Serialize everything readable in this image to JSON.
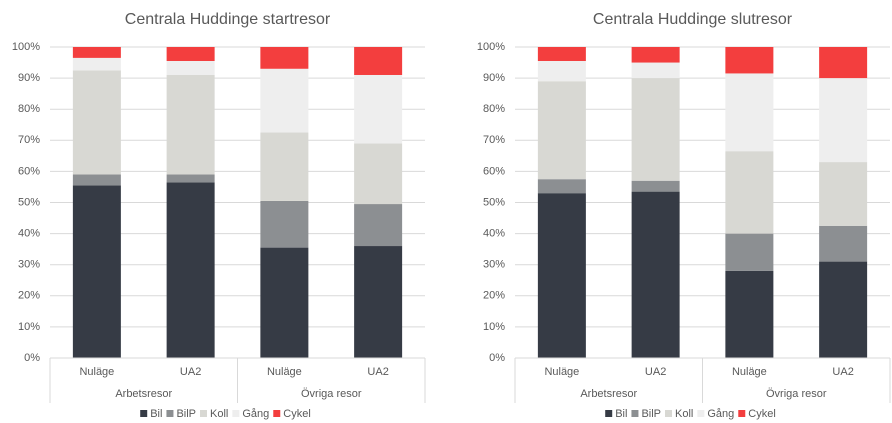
{
  "chart_data": [
    {
      "type": "stacked_bar",
      "title": "Centrala Huddinge startresor",
      "groups": [
        {
          "name": "Arbetsresor",
          "categories": [
            "Nuläge",
            "UA2"
          ]
        },
        {
          "name": "Övriga resor",
          "categories": [
            "Nuläge",
            "UA2"
          ]
        }
      ],
      "series": [
        {
          "name": "Bil",
          "color": "#363b45",
          "values": [
            55.5,
            56.5,
            35.5,
            36
          ]
        },
        {
          "name": "BilP",
          "color": "#8c8f92",
          "values": [
            3.5,
            2.5,
            15,
            13.5
          ]
        },
        {
          "name": "Koll",
          "color": "#d8d8d3",
          "values": [
            33.5,
            32,
            22,
            19.5
          ]
        },
        {
          "name": "Gång",
          "color": "#eeeeee",
          "values": [
            4,
            4.5,
            20.5,
            22
          ]
        },
        {
          "name": "Cykel",
          "color": "#f33e3e",
          "values": [
            3.5,
            4.5,
            7,
            9
          ]
        }
      ],
      "ylim": [
        0,
        100
      ],
      "yticks": [
        {
          "value": 0,
          "label": "0%"
        },
        {
          "value": 10,
          "label": "10%"
        },
        {
          "value": 20,
          "label": "20%"
        },
        {
          "value": 30,
          "label": "30%"
        },
        {
          "value": 40,
          "label": "40%"
        },
        {
          "value": 50,
          "label": "50%"
        },
        {
          "value": 60,
          "label": "60%"
        },
        {
          "value": 70,
          "label": "70%"
        },
        {
          "value": 80,
          "label": "80%"
        },
        {
          "value": 90,
          "label": "90%"
        },
        {
          "value": 100,
          "label": "100%"
        }
      ],
      "grid": true,
      "legend": "bottom"
    },
    {
      "type": "stacked_bar",
      "title": "Centrala Huddinge slutresor",
      "groups": [
        {
          "name": "Arbetsresor",
          "categories": [
            "Nuläge",
            "UA2"
          ]
        },
        {
          "name": "Övriga resor",
          "categories": [
            "Nuläge",
            "UA2"
          ]
        }
      ],
      "series": [
        {
          "name": "Bil",
          "color": "#363b45",
          "values": [
            53,
            53.5,
            28,
            31
          ]
        },
        {
          "name": "BilP",
          "color": "#8c8f92",
          "values": [
            4.5,
            3.5,
            12,
            11.5
          ]
        },
        {
          "name": "Koll",
          "color": "#d8d8d3",
          "values": [
            31.5,
            33,
            26.5,
            20.5
          ]
        },
        {
          "name": "Gång",
          "color": "#eeeeee",
          "values": [
            6.5,
            5,
            25,
            27
          ]
        },
        {
          "name": "Cykel",
          "color": "#f33e3e",
          "values": [
            4.5,
            5,
            8.5,
            10
          ]
        }
      ],
      "ylim": [
        0,
        100
      ],
      "yticks": [
        {
          "value": 0,
          "label": "0%"
        },
        {
          "value": 10,
          "label": "10%"
        },
        {
          "value": 20,
          "label": "20%"
        },
        {
          "value": 30,
          "label": "30%"
        },
        {
          "value": 40,
          "label": "40%"
        },
        {
          "value": 50,
          "label": "50%"
        },
        {
          "value": 60,
          "label": "60%"
        },
        {
          "value": 70,
          "label": "70%"
        },
        {
          "value": 80,
          "label": "80%"
        },
        {
          "value": 90,
          "label": "90%"
        },
        {
          "value": 100,
          "label": "100%"
        }
      ],
      "grid": true,
      "legend": "bottom"
    }
  ]
}
